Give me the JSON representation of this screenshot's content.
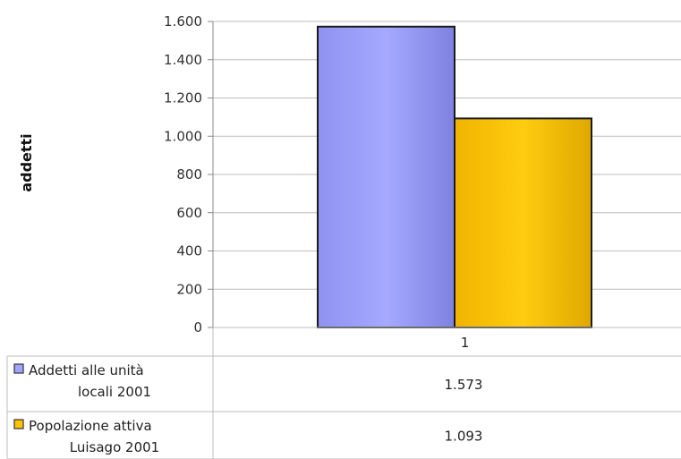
{
  "chart_data": {
    "type": "bar",
    "categories": [
      "1"
    ],
    "series": [
      {
        "name": "Addetti alle unità locali 2001",
        "name_lines": [
          "Addetti alle unità",
          "locali 2001"
        ],
        "values": [
          1573
        ],
        "label": "1.573",
        "color": "#a0a3ff"
      },
      {
        "name": "Popolazione attiva Luisago 2001",
        "name_lines": [
          "Popolazione attiva",
          "Luisago 2001"
        ],
        "values": [
          1093
        ],
        "label": "1.093",
        "color": "#ffc400"
      }
    ],
    "ylabel": "addetti",
    "ylim": [
      0,
      1600
    ],
    "yticks": [
      0,
      200,
      400,
      600,
      800,
      1000,
      1200,
      1400,
      1600
    ],
    "ytick_labels": [
      "0",
      "200",
      "400",
      "600",
      "800",
      "1.000",
      "1.200",
      "1.400",
      "1.600"
    ],
    "grid": true,
    "legend": "data table below chart"
  }
}
